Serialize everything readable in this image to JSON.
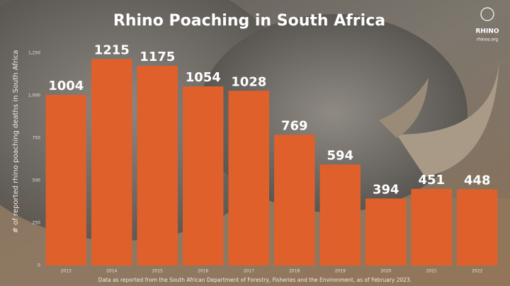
{
  "chart_data": {
    "type": "bar",
    "title": "Rhino Poaching in South Africa",
    "y_label": "# of reported rhino poaching deaths in South Africa",
    "source": "Data as reported from the South African Department of Forestry, Fisheries and the Environment, as of February 2023.",
    "logo": {
      "name": "RHINO",
      "url": "rhinos.org"
    },
    "categories": [
      "2013",
      "2014",
      "2015",
      "2016",
      "2017",
      "2018",
      "2019",
      "2020",
      "2021",
      "2022"
    ],
    "values": [
      1004,
      1215,
      1175,
      1054,
      1028,
      769,
      594,
      394,
      451,
      448
    ],
    "color": "#e0602c",
    "ylim": [
      0,
      1250
    ],
    "yticks": [
      0,
      250,
      500,
      750,
      {
        "value": 1000,
        "label": "1,000"
      },
      {
        "value": 1250,
        "label": "1,250"
      }
    ],
    "grid": false
  }
}
